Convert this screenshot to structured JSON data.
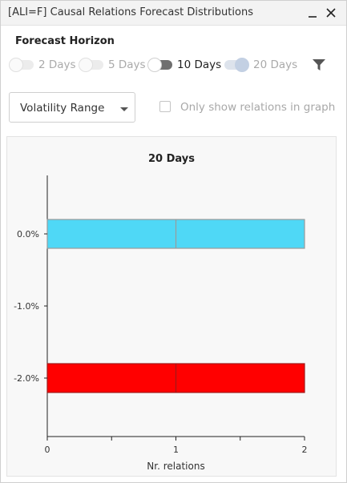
{
  "window": {
    "title": "[ALI=F] Causal Relations Forecast Distributions",
    "minimize_glyph": "_",
    "close_glyph": "✕"
  },
  "horizon": {
    "label": "Forecast Horizon",
    "options": [
      {
        "label": "2 Days",
        "state": "off"
      },
      {
        "label": "5 Days",
        "state": "off"
      },
      {
        "label": "10 Days",
        "state": "on-dark"
      },
      {
        "label": "20 Days",
        "state": "selected"
      }
    ]
  },
  "icons": {
    "filter": "filter-icon",
    "caret": "caret-down-icon"
  },
  "controls": {
    "range_select": "Volatility Range",
    "only_show_label": "Only show relations in graph",
    "only_show_checked": false
  },
  "chart_data": {
    "type": "bar",
    "orientation": "horizontal",
    "title": "20 Days",
    "xlabel": "Nr. relations",
    "ylabel": "",
    "xlim": [
      0,
      2
    ],
    "x_ticks": [
      "0",
      "1",
      "2"
    ],
    "categories": [
      "0.0%",
      "-1.0%",
      "-2.0%"
    ],
    "series": [
      {
        "values": [
          2,
          0,
          2
        ]
      }
    ],
    "bar_colors": [
      "#4fd8f6",
      "#ff0000",
      "#ff0000"
    ],
    "bar_segment_dividers_at": [
      1
    ],
    "grid": false
  }
}
